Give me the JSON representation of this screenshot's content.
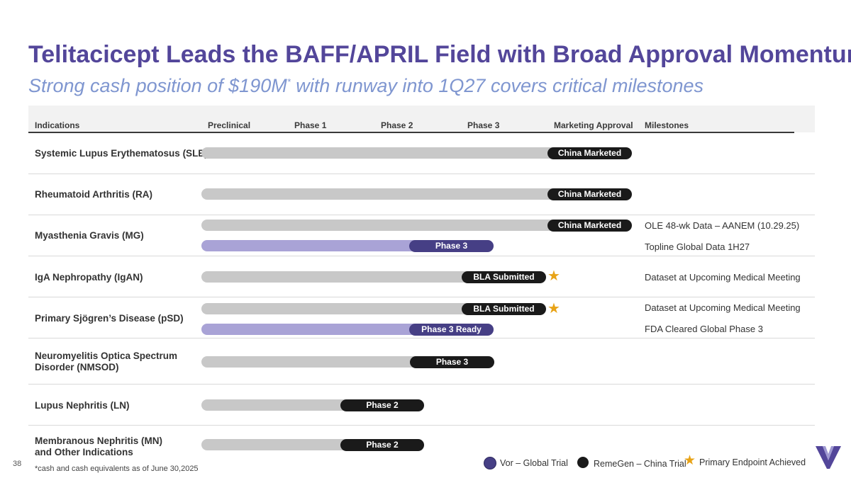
{
  "title": "Telitacicept Leads the BAFF/APRIL Field with Broad Approval Momentum",
  "subtitle": {
    "before": "Strong cash position of $190M",
    "sup": "*",
    "after": " with runway into 1Q27 covers critical milestones"
  },
  "headers": {
    "indications": "Indications",
    "preclinical": "Preclinical",
    "phase1": "Phase 1",
    "phase2": "Phase 2",
    "phase3": "Phase 3",
    "approval": "Marketing Approval",
    "milestones": "Milestones"
  },
  "rows": [
    {
      "label": "Systemic Lupus Erythematosus (SLE)",
      "bars": [
        {
          "stage": "China Marketed",
          "trial": "RemeGen – China Trial",
          "star": false
        }
      ],
      "milestones": []
    },
    {
      "label": "Rheumatoid Arthritis (RA)",
      "bars": [
        {
          "stage": "China Marketed",
          "trial": "RemeGen – China Trial",
          "star": false
        }
      ],
      "milestones": []
    },
    {
      "label": "Myasthenia Gravis (MG)",
      "bars": [
        {
          "stage": "China Marketed",
          "trial": "RemeGen – China Trial",
          "star": false
        },
        {
          "stage": "Phase 3",
          "trial": "Vor – Global Trial",
          "star": false
        }
      ],
      "milestones": [
        "OLE 48-wk Data – AANEM (10.29.25)",
        "Topline Global Data 1H27"
      ]
    },
    {
      "label": "IgA Nephropathy (IgAN)",
      "bars": [
        {
          "stage": "BLA Submitted",
          "trial": "RemeGen – China Trial",
          "star": true
        }
      ],
      "milestones": [
        "Dataset at Upcoming Medical Meeting"
      ]
    },
    {
      "label": "Primary Sjögren’s Disease (pSD)",
      "bars": [
        {
          "stage": "BLA Submitted",
          "trial": "RemeGen – China Trial",
          "star": true
        },
        {
          "stage": "Phase 3 Ready",
          "trial": "Vor – Global Trial",
          "star": false
        }
      ],
      "milestones": [
        "Dataset at Upcoming Medical Meeting",
        "FDA Cleared Global Phase 3"
      ]
    },
    {
      "label_line1": "Neuromyelitis Optica Spectrum",
      "label_line2": "Disorder (NMSOD)",
      "bars": [
        {
          "stage": "Phase 3",
          "trial": "RemeGen – China Trial",
          "star": false
        }
      ],
      "milestones": []
    },
    {
      "label": "Lupus Nephritis (LN)",
      "bars": [
        {
          "stage": "Phase 2",
          "trial": "RemeGen – China Trial",
          "star": false
        }
      ],
      "milestones": []
    },
    {
      "label_line1": "Membranous Nephritis (MN)",
      "label_line2": "and Other Indications",
      "bars": [
        {
          "stage": "Phase 2",
          "trial": "RemeGen – China Trial",
          "star": false
        }
      ],
      "milestones": []
    }
  ],
  "legend": {
    "vor": "Vor – Global Trial",
    "remegen": "RemeGen – China Trial",
    "endpoint": "Primary Endpoint Achieved"
  },
  "colors": {
    "title": "#53469a",
    "subtitle": "#7f96d0",
    "vor_track": "#a9a3d6",
    "vor_pill": "#463f85",
    "remegen_track": "#c8c8c8",
    "remegen_pill": "#1a1a1a",
    "star": "#e8a317"
  },
  "page_number": "38",
  "footnote": "*cash and cash equivalents as of June 30,2025",
  "logo_icon": "vor-logo-icon"
}
